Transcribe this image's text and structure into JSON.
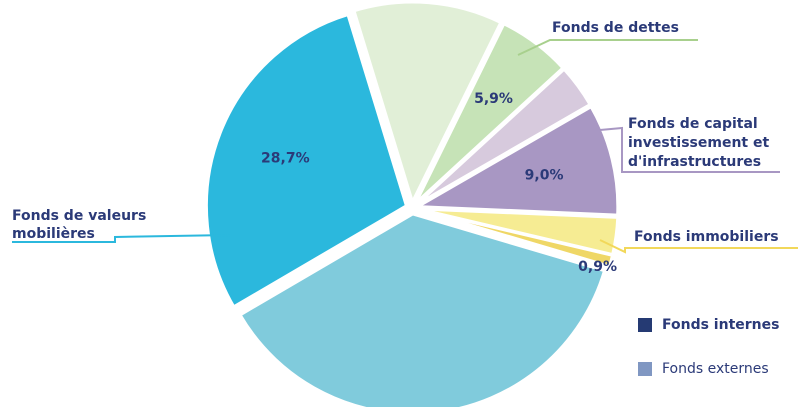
{
  "chart_data": {
    "type": "pie",
    "values": [
      12,
      5.9,
      3.5,
      9.0,
      3,
      0.9,
      37,
      28.7
    ],
    "value_labels": [
      null,
      "5,9%",
      null,
      "9,0%",
      null,
      "0,9%",
      null,
      "28,7%"
    ],
    "colors": [
      "#e1efd7",
      "#c6e3b7",
      "#d7cadd",
      "#a897c3",
      "#f6ec93",
      "#efd766",
      "#80cbdc",
      "#2bb8dd"
    ],
    "callouts": [
      {
        "lines": [
          "Fonds de dettes"
        ],
        "color": "#a8d08d"
      },
      {
        "lines": [
          "Fonds de capital",
          "investissement et",
          "d'infrastructures"
        ],
        "color": "#a897c3"
      },
      {
        "lines": [
          "Fonds immobiliers"
        ],
        "color": "#f2d85a"
      },
      {
        "lines": [
          "Fonds de valeurs",
          "mobilières"
        ],
        "color": "#2bb8dd"
      }
    ],
    "legend": [
      {
        "name": "Fonds internes",
        "color": "#253a73"
      },
      {
        "name": "Fonds externes",
        "color": "#8097c2"
      }
    ]
  }
}
